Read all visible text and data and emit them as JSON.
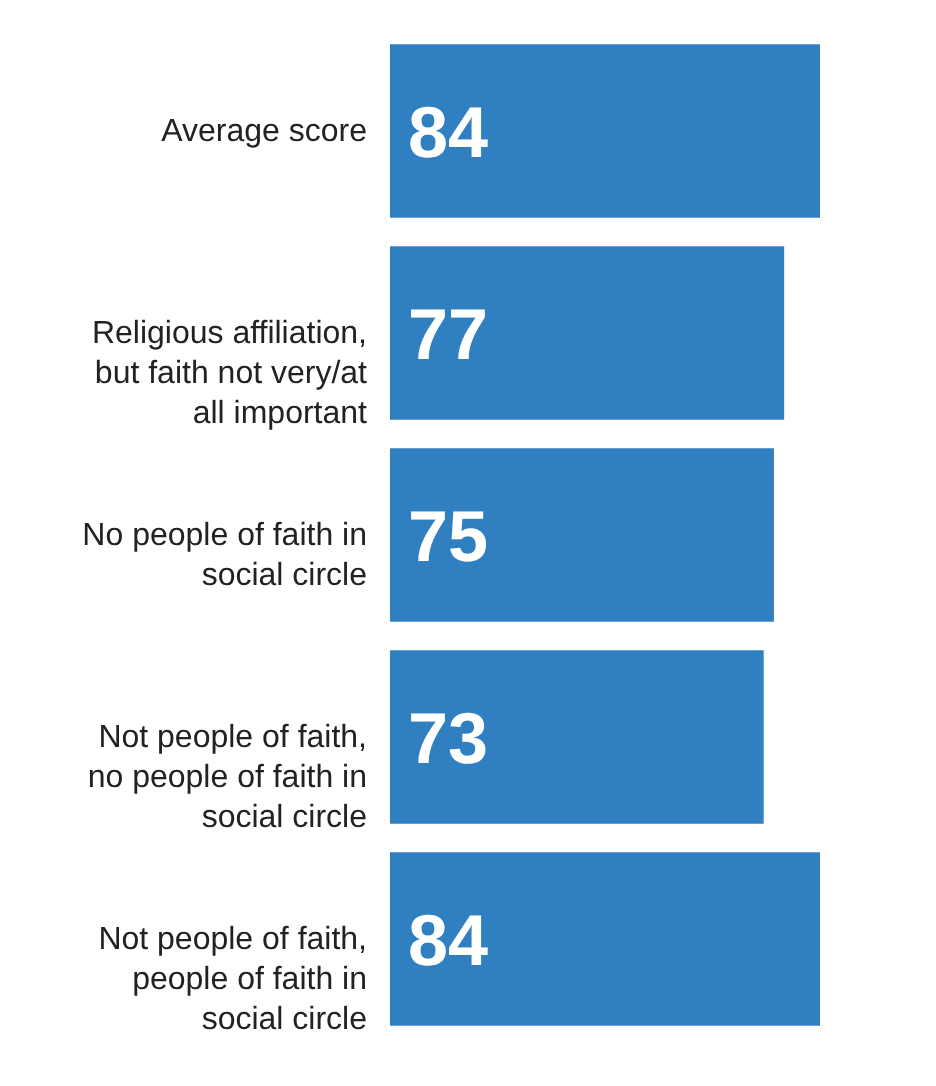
{
  "chart_data": {
    "type": "bar",
    "orientation": "horizontal",
    "categories": [
      "Average score",
      "Religious affiliation, but faith not very/at all important",
      "No people of faith in social circle",
      "Not people of faith, no people of faith in social circle",
      "Not people of faith, people of faith in social circle"
    ],
    "values": [
      84,
      77,
      75,
      73,
      84
    ],
    "color": "#2f7fc1",
    "data_labels": true
  }
}
